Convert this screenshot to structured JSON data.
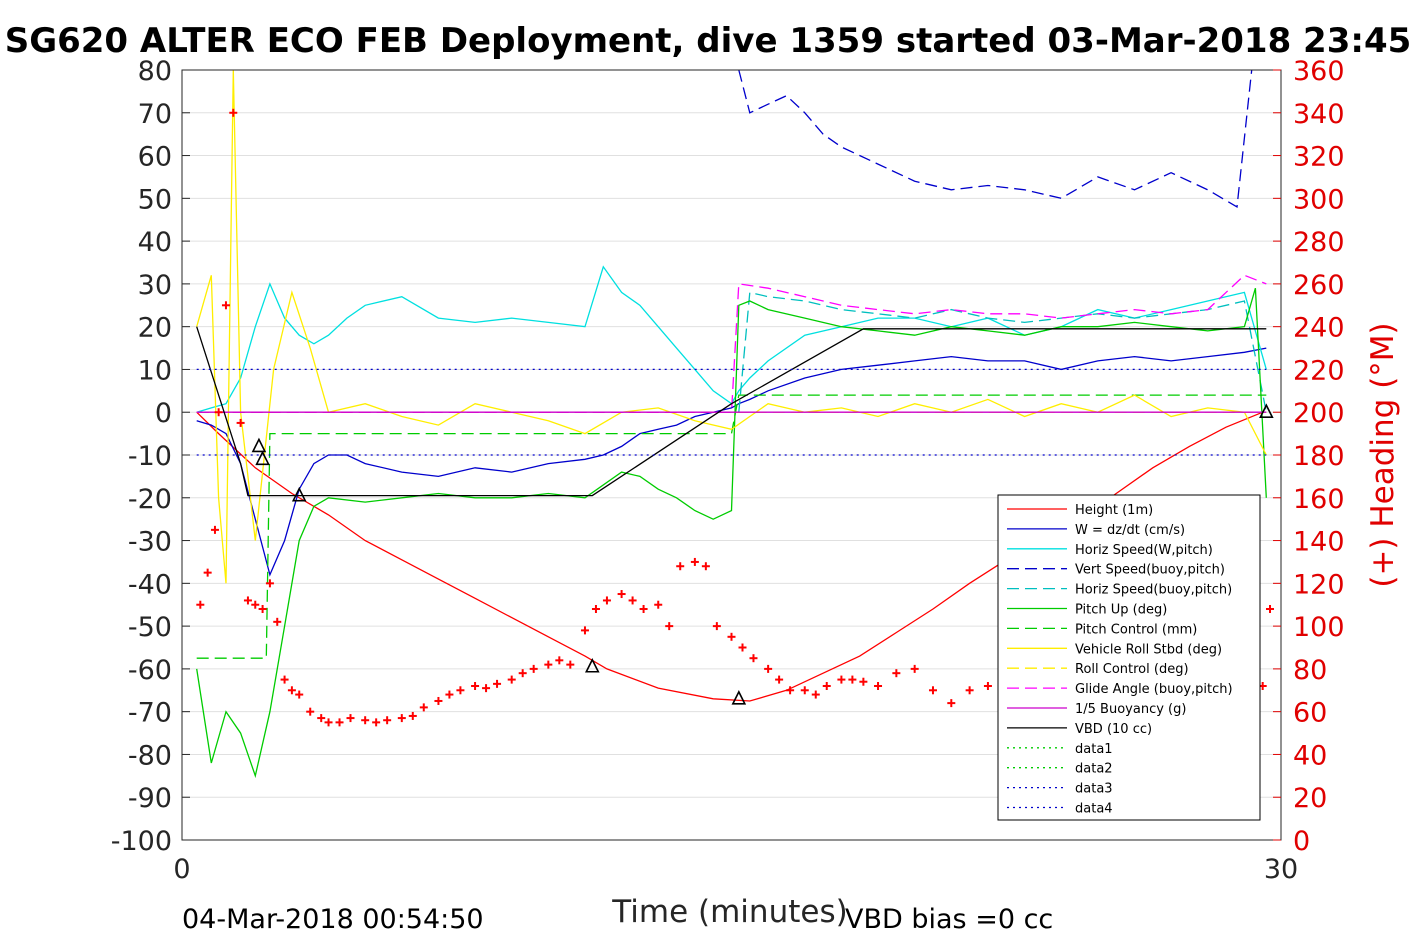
{
  "chart_data": {
    "type": "line",
    "title": "SG620 ALTER ECO FEB Deployment, dive 1359 started 03-Mar-2018 23:45",
    "xlabel": "Time (minutes)",
    "ylabel_right": "(+) Heading (°M)",
    "xlim": [
      0,
      30
    ],
    "ylim_left": [
      -100,
      80
    ],
    "ylim_right": [
      0,
      360
    ],
    "x_ticks": [
      "0",
      "30"
    ],
    "y_ticks_left": [
      "80",
      "70",
      "60",
      "50",
      "40",
      "30",
      "20",
      "10",
      "0",
      "-10",
      "-20",
      "-30",
      "-40",
      "-50",
      "-60",
      "-70",
      "-80",
      "-90",
      "-100"
    ],
    "y_ticks_right": [
      "360",
      "340",
      "320",
      "300",
      "280",
      "260",
      "240",
      "220",
      "200",
      "180",
      "160",
      "140",
      "120",
      "100",
      "80",
      "60",
      "40",
      "20",
      "0"
    ],
    "grid": true,
    "legend_position": "bottom-right",
    "footer_left": "04-Mar-2018 00:54:50",
    "footer_right": "VBD bias =0 cc",
    "series": [
      {
        "name": "Height (1m)",
        "color": "#ff0000",
        "style": "solid",
        "x": [
          0.4,
          1.0,
          2.0,
          3.0,
          4.0,
          5.0,
          6.0,
          7.0,
          8.0,
          9.0,
          10.0,
          11.0,
          11.6,
          13.0,
          14.5,
          15.5,
          16.5,
          17.5,
          18.5,
          19.5,
          20.5,
          21.5,
          22.5,
          23.5,
          24.5,
          25.5,
          26.5,
          27.5,
          28.5,
          29.5
        ],
        "y": [
          0.0,
          -5.0,
          -13.0,
          -19.0,
          -24.0,
          -30.0,
          -34.5,
          -39.0,
          -43.5,
          -48.0,
          -52.5,
          -57.0,
          -60.0,
          -64.5,
          -67.0,
          -67.5,
          -65.0,
          -61.0,
          -57.0,
          -51.5,
          -46.0,
          -40.0,
          -34.5,
          -30.0,
          -25.0,
          -19.0,
          -13.0,
          -8.0,
          -3.5,
          0.0
        ]
      },
      {
        "name": "W = dz/dt (cm/s)",
        "color": "#0000cc",
        "style": "solid",
        "x": [
          0.4,
          0.8,
          1.2,
          1.6,
          2.0,
          2.4,
          2.8,
          3.2,
          3.6,
          4.0,
          4.5,
          5.0,
          6.0,
          7.0,
          8.0,
          9.0,
          10.0,
          11.0,
          11.5,
          12.0,
          12.5,
          13.0,
          13.5,
          14.0,
          14.5,
          15.0,
          15.2,
          15.5,
          16.0,
          17.0,
          18.0,
          19.0,
          20.0,
          21.0,
          22.0,
          23.0,
          24.0,
          25.0,
          26.0,
          27.0,
          28.0,
          29.0,
          29.6
        ],
        "y": [
          -2.0,
          -3.0,
          -5.0,
          -12.0,
          -25.0,
          -38.0,
          -30.0,
          -18.0,
          -12.0,
          -10.0,
          -10.0,
          -12.0,
          -14.0,
          -15.0,
          -13.0,
          -14.0,
          -12.0,
          -11.0,
          -10.0,
          -8.0,
          -5.0,
          -4.0,
          -3.0,
          -1.0,
          0.0,
          1.0,
          2.0,
          3.0,
          5.0,
          8.0,
          10.0,
          11.0,
          12.0,
          13.0,
          12.0,
          12.0,
          10.0,
          12.0,
          13.0,
          12.0,
          13.0,
          14.0,
          15.0
        ]
      },
      {
        "name": "Horiz Speed(W,pitch)",
        "color": "#00e0e0",
        "style": "solid",
        "x": [
          0.4,
          0.8,
          1.2,
          1.6,
          2.0,
          2.4,
          2.8,
          3.2,
          3.6,
          4.0,
          4.5,
          5.0,
          6.0,
          7.0,
          8.0,
          9.0,
          10.0,
          11.0,
          11.5,
          12.0,
          12.5,
          13.0,
          13.5,
          14.0,
          14.5,
          15.0,
          15.2,
          15.5,
          16.0,
          17.0,
          18.0,
          19.0,
          20.0,
          21.0,
          22.0,
          23.0,
          24.0,
          25.0,
          26.0,
          27.0,
          28.0,
          29.0,
          29.6
        ],
        "y": [
          0.0,
          1.0,
          2.0,
          8.0,
          20.0,
          30.0,
          22.0,
          18.0,
          16.0,
          18.0,
          22.0,
          25.0,
          27.0,
          22.0,
          21.0,
          22.0,
          21.0,
          20.0,
          34.0,
          28.0,
          25.0,
          20.0,
          15.0,
          10.0,
          5.0,
          2.0,
          5.0,
          8.0,
          12.0,
          18.0,
          20.0,
          22.0,
          22.0,
          20.0,
          22.0,
          18.0,
          20.0,
          24.0,
          22.0,
          24.0,
          26.0,
          28.0,
          10.0
        ]
      },
      {
        "name": "Vert Speed(buoy,pitch)",
        "color": "#0000cc",
        "style": "dashed",
        "x": [
          15.2,
          15.5,
          16.0,
          16.5,
          17.0,
          17.5,
          18.0,
          19.0,
          20.0,
          21.0,
          22.0,
          23.0,
          24.0,
          25.0,
          26.0,
          27.0,
          28.0,
          28.8,
          29.2
        ],
        "y": [
          80.0,
          70.0,
          72.0,
          74.0,
          70.0,
          65.0,
          62.0,
          58.0,
          54.0,
          52.0,
          53.0,
          52.0,
          50.0,
          55.0,
          52.0,
          56.0,
          52.0,
          48.0,
          80.0
        ]
      },
      {
        "name": "Horiz Speed(buoy,pitch)",
        "color": "#00bfbf",
        "style": "dashed",
        "x": [
          15.2,
          15.5,
          16.0,
          17.0,
          18.0,
          19.0,
          20.0,
          21.0,
          22.0,
          23.0,
          24.0,
          25.0,
          26.0,
          27.0,
          28.0,
          29.0,
          29.6
        ],
        "y": [
          0.0,
          28.0,
          27.0,
          26.0,
          24.0,
          23.0,
          22.0,
          24.0,
          22.0,
          21.0,
          22.0,
          23.0,
          22.0,
          23.0,
          24.0,
          26.0,
          0.0
        ]
      },
      {
        "name": "Pitch Up (deg)",
        "color": "#00cc00",
        "style": "solid",
        "x": [
          0.4,
          0.8,
          1.2,
          1.6,
          2.0,
          2.4,
          2.8,
          3.2,
          3.6,
          4.0,
          5.0,
          6.0,
          7.0,
          8.0,
          9.0,
          10.0,
          11.0,
          12.0,
          12.5,
          13.0,
          13.5,
          14.0,
          14.5,
          15.0,
          15.2,
          15.5,
          16.0,
          17.0,
          18.0,
          19.0,
          20.0,
          21.0,
          22.0,
          23.0,
          24.0,
          25.0,
          26.0,
          27.0,
          28.0,
          29.0,
          29.3,
          29.6
        ],
        "y": [
          -60.0,
          -82.0,
          -70.0,
          -75.0,
          -85.0,
          -70.0,
          -50.0,
          -30.0,
          -22.0,
          -20.0,
          -21.0,
          -20.0,
          -19.0,
          -20.0,
          -20.0,
          -19.0,
          -20.0,
          -14.0,
          -15.0,
          -18.0,
          -20.0,
          -23.0,
          -25.0,
          -23.0,
          25.0,
          26.0,
          24.0,
          22.0,
          20.0,
          19.0,
          18.0,
          20.0,
          19.0,
          18.0,
          20.0,
          20.0,
          21.0,
          20.0,
          19.0,
          20.0,
          29.0,
          -20.0
        ]
      },
      {
        "name": "Pitch Control (mm)",
        "color": "#00cc00",
        "style": "dashed",
        "x": [
          0.4,
          1.6,
          2.0,
          2.3,
          2.4,
          15.0,
          15.2,
          29.6
        ],
        "y": [
          -57.5,
          -57.5,
          -57.5,
          -57.5,
          -5.0,
          -5.0,
          4.0,
          4.0
        ]
      },
      {
        "name": "Vehicle Roll Stbd (deg)",
        "color": "#ffee00",
        "style": "solid",
        "x": [
          0.4,
          0.8,
          1.0,
          1.2,
          1.4,
          1.6,
          2.0,
          2.5,
          3.0,
          3.5,
          4.0,
          5.0,
          6.0,
          7.0,
          8.0,
          9.0,
          10.0,
          11.0,
          12.0,
          13.0,
          14.0,
          15.0,
          16.0,
          17.0,
          18.0,
          19.0,
          20.0,
          21.0,
          22.0,
          23.0,
          24.0,
          25.0,
          26.0,
          27.0,
          28.0,
          29.0,
          29.6
        ],
        "y": [
          20.0,
          32.0,
          -20.0,
          -40.0,
          80.0,
          0.0,
          -30.0,
          10.0,
          28.0,
          15.0,
          0.0,
          2.0,
          -1.0,
          -3.0,
          2.0,
          0.0,
          -2.0,
          -5.0,
          0.0,
          1.0,
          -2.0,
          -4.0,
          2.0,
          0.0,
          1.0,
          -1.0,
          2.0,
          0.0,
          3.0,
          -1.0,
          2.0,
          0.0,
          4.0,
          -1.0,
          1.0,
          0.0,
          -10.0
        ]
      },
      {
        "name": "Roll Control (deg)",
        "color": "#ffee00",
        "style": "dashed",
        "x": [
          0.4,
          29.6
        ],
        "y": [
          0.0,
          0.0
        ]
      },
      {
        "name": "Glide Angle (buoy,pitch)",
        "color": "#ff00ff",
        "style": "dashed",
        "x": [
          0.4,
          15.0,
          15.2,
          16.0,
          17.0,
          18.0,
          19.0,
          20.0,
          21.0,
          22.0,
          23.0,
          24.0,
          25.0,
          26.0,
          27.0,
          28.0,
          29.0,
          29.6
        ],
        "y": [
          0.0,
          0.0,
          30.0,
          29.0,
          27.0,
          25.0,
          24.0,
          23.0,
          24.0,
          23.0,
          23.0,
          22.0,
          23.0,
          24.0,
          23.0,
          24.0,
          32.0,
          30.0
        ]
      },
      {
        "name": "1/5 Buoyancy (g)",
        "color": "#cc00cc",
        "style": "solid",
        "x": [
          0.4,
          29.6
        ],
        "y": [
          0.0,
          0.0
        ]
      },
      {
        "name": "VBD (10 cc)",
        "color": "#000000",
        "style": "solid",
        "x": [
          0.4,
          1.6,
          1.8,
          10.0,
          11.2,
          15.0,
          18.6,
          29.6
        ],
        "y": [
          20.0,
          -12.0,
          -19.5,
          -19.5,
          -19.5,
          2.0,
          19.5,
          19.5
        ]
      },
      {
        "name": "data1",
        "color": "#00cc00",
        "style": "dotted",
        "x": [],
        "y": []
      },
      {
        "name": "data2",
        "color": "#00cc00",
        "style": "dotted",
        "x": [],
        "y": []
      },
      {
        "name": "data3",
        "color": "#0000cc",
        "style": "dotted",
        "x": [
          0.4,
          29.6
        ],
        "y": [
          10.0,
          10.0
        ]
      },
      {
        "name": "data4",
        "color": "#0000cc",
        "style": "dotted",
        "x": [
          0.4,
          29.6
        ],
        "y": [
          -10.0,
          -10.0
        ]
      }
    ],
    "heading_series": {
      "name": "(+) Heading (°M)",
      "color": "#ff0000",
      "marker": "+",
      "axis": "right",
      "x": [
        0.5,
        0.7,
        0.9,
        1.0,
        1.2,
        1.4,
        1.6,
        1.8,
        2.0,
        2.2,
        2.4,
        2.6,
        2.8,
        3.0,
        3.2,
        3.5,
        3.8,
        4.0,
        4.3,
        4.6,
        5.0,
        5.3,
        5.6,
        6.0,
        6.3,
        6.6,
        7.0,
        7.3,
        7.6,
        8.0,
        8.3,
        8.6,
        9.0,
        9.3,
        9.6,
        10.0,
        10.3,
        10.6,
        11.0,
        11.3,
        11.6,
        12.0,
        12.3,
        12.6,
        13.0,
        13.3,
        13.6,
        14.0,
        14.3,
        14.6,
        15.0,
        15.3,
        15.6,
        16.0,
        16.3,
        16.6,
        17.0,
        17.3,
        17.6,
        18.0,
        18.3,
        18.6,
        19.0,
        19.5,
        20.0,
        20.5,
        21.0,
        21.5,
        22.0,
        22.5,
        23.0,
        23.5,
        24.0,
        24.5,
        25.0,
        25.5,
        26.0,
        26.5,
        27.0,
        27.5,
        28.0,
        28.3,
        28.6,
        29.0,
        29.3,
        29.5,
        29.7
      ],
      "y": [
        110.0,
        125.0,
        145.0,
        200.0,
        250.0,
        340.0,
        195.0,
        112.0,
        110.0,
        108.0,
        120.0,
        102.0,
        75.0,
        70.0,
        68.0,
        60.0,
        57.0,
        55.0,
        55.0,
        57.0,
        56.0,
        55.0,
        56.0,
        57.0,
        58.0,
        62.0,
        65.0,
        68.0,
        70.0,
        72.0,
        71.0,
        73.0,
        75.0,
        78.0,
        80.0,
        82.0,
        84.0,
        82.0,
        98.0,
        108.0,
        112.0,
        115.0,
        112.0,
        108.0,
        110.0,
        100.0,
        128.0,
        130.0,
        128.0,
        100.0,
        95.0,
        90.0,
        85.0,
        80.0,
        75.0,
        70.0,
        70.0,
        68.0,
        72.0,
        75.0,
        75.0,
        74.0,
        72.0,
        78.0,
        80.0,
        70.0,
        64.0,
        70.0,
        72.0,
        67.0,
        68.0,
        65.0,
        70.0,
        72.0,
        68.0,
        65.0,
        67.0,
        70.0,
        75.0,
        68.0,
        72.0,
        62.0,
        50.0,
        36.0,
        78.0,
        72.0,
        108.0
      ]
    },
    "annotations": [
      {
        "text": "Turn-point markers (triangles)",
        "x": [
          2.1,
          2.2,
          3.2,
          11.2,
          15.2,
          29.6
        ],
        "y": [
          -8.0,
          -11.0,
          -19.5,
          -59.5,
          -67.0,
          0.0
        ]
      }
    ]
  },
  "legend": {
    "items": [
      {
        "label": "Height (1m)",
        "color": "#ff0000",
        "style": "solid"
      },
      {
        "label": "W = dz/dt (cm/s)",
        "color": "#0000cc",
        "style": "solid"
      },
      {
        "label": "Horiz Speed(W,pitch)",
        "color": "#00e0e0",
        "style": "solid"
      },
      {
        "label": "Vert Speed(buoy,pitch)",
        "color": "#0000cc",
        "style": "dashed"
      },
      {
        "label": "Horiz Speed(buoy,pitch)",
        "color": "#00bfbf",
        "style": "dashed"
      },
      {
        "label": "Pitch Up (deg)",
        "color": "#00cc00",
        "style": "solid"
      },
      {
        "label": "Pitch Control (mm)",
        "color": "#00cc00",
        "style": "dashed"
      },
      {
        "label": "Vehicle Roll Stbd (deg)",
        "color": "#ffee00",
        "style": "solid"
      },
      {
        "label": "Roll Control (deg)",
        "color": "#ffee00",
        "style": "dashed"
      },
      {
        "label": "Glide Angle (buoy,pitch)",
        "color": "#ff00ff",
        "style": "dashed"
      },
      {
        "label": "1/5 Buoyancy (g)",
        "color": "#cc00cc",
        "style": "solid"
      },
      {
        "label": "VBD (10 cc)",
        "color": "#000000",
        "style": "solid"
      },
      {
        "label": "data1",
        "color": "#00cc00",
        "style": "dotted"
      },
      {
        "label": "data2",
        "color": "#00cc00",
        "style": "dotted"
      },
      {
        "label": "data3",
        "color": "#0000cc",
        "style": "dotted"
      },
      {
        "label": "data4",
        "color": "#0000cc",
        "style": "dotted"
      }
    ]
  }
}
